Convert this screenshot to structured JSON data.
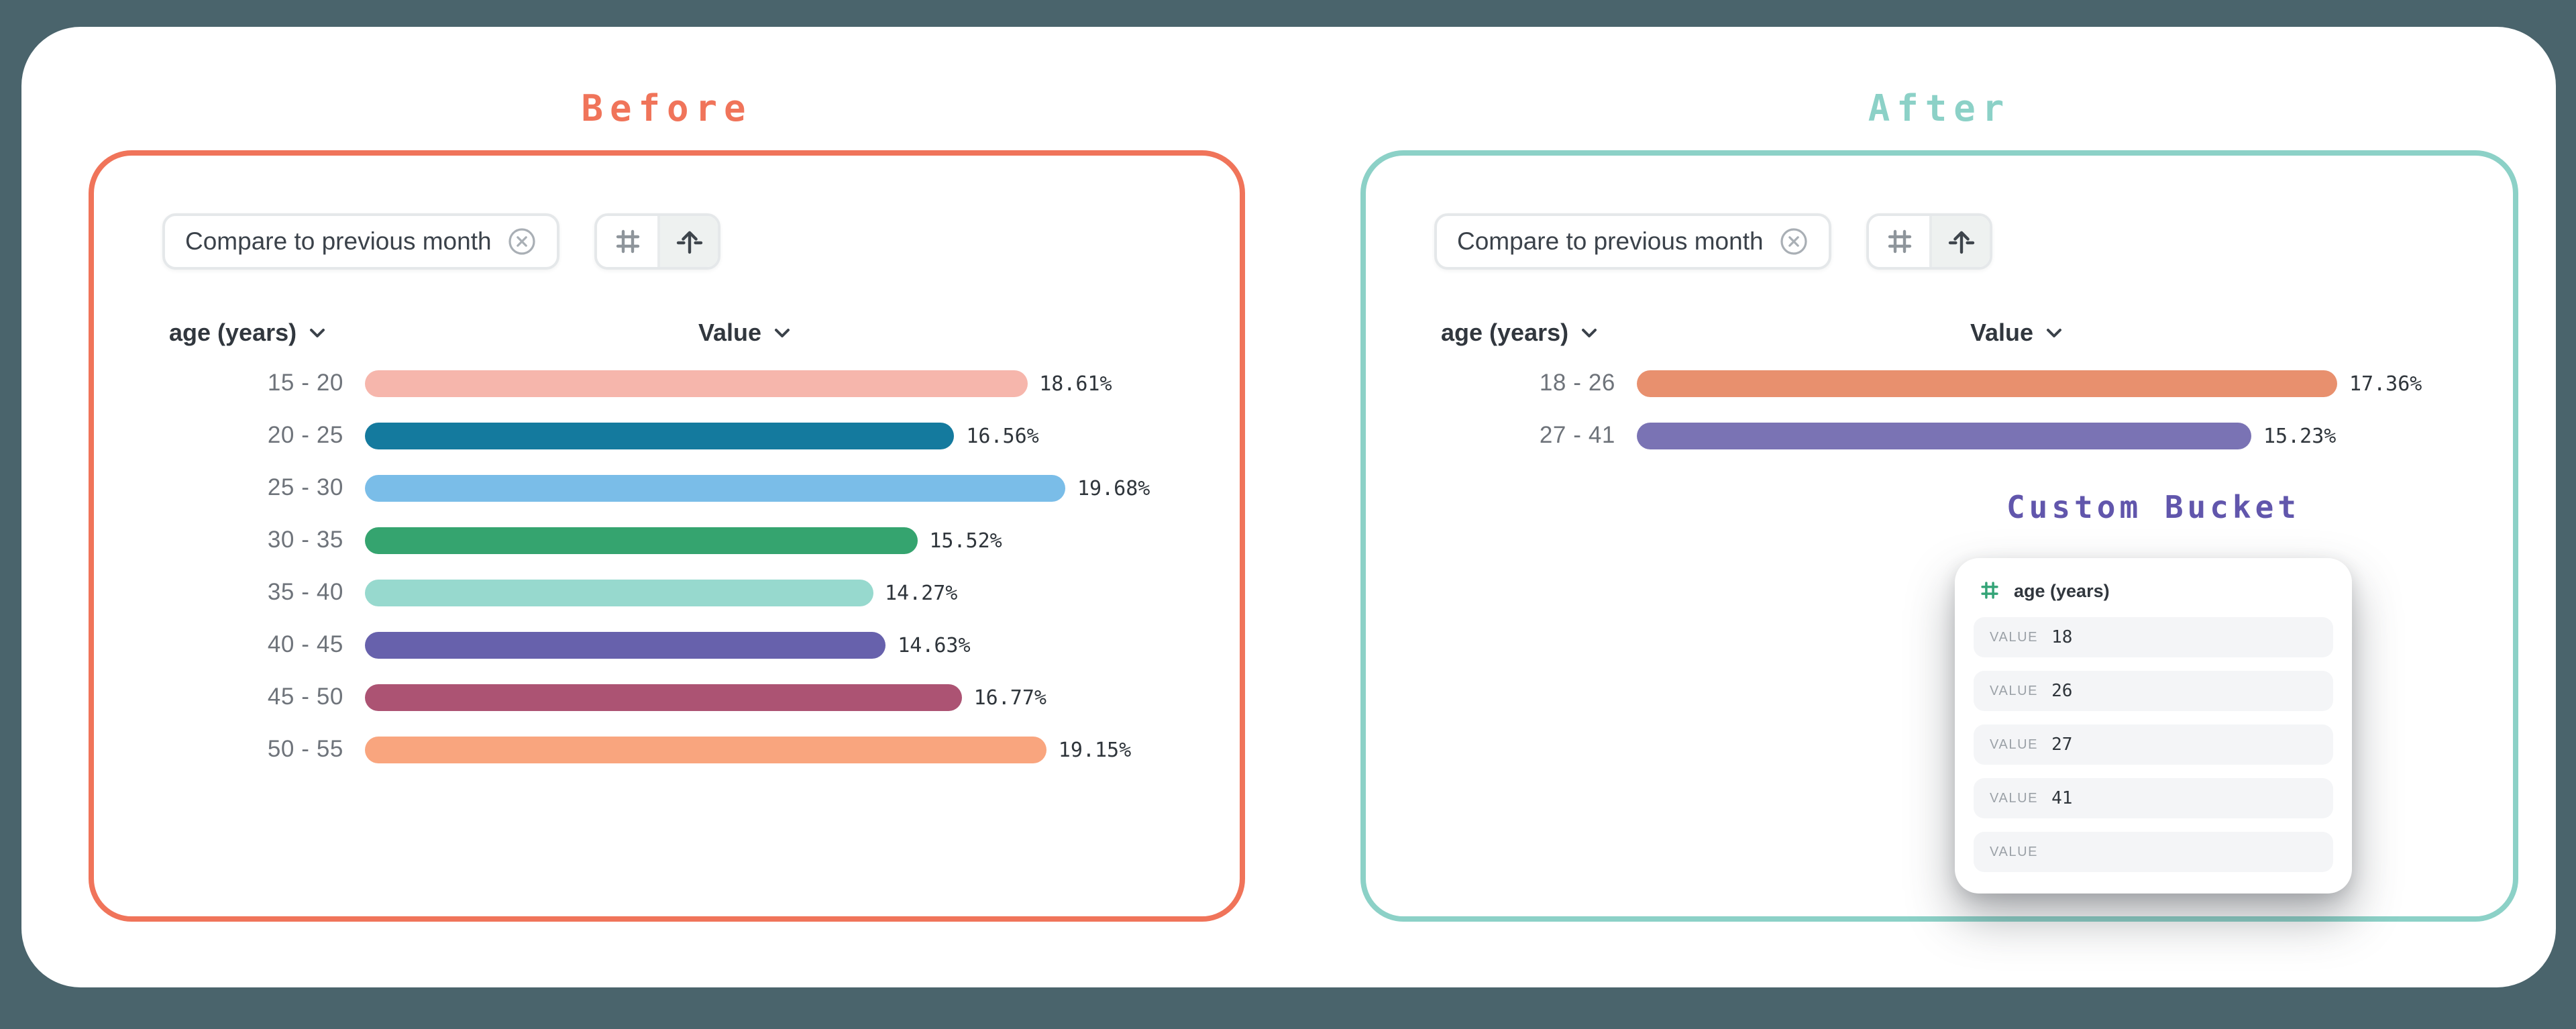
{
  "page": {
    "background": "#4A646C",
    "card_background": "#FFFFFF"
  },
  "before": {
    "title": "Before",
    "accent": "#F0745A",
    "filter_chip": {
      "label": "Compare to previous month",
      "close_icon": "circle-x-icon"
    },
    "view_toggle": {
      "options": [
        {
          "icon": "table-grid-icon",
          "selected": false
        },
        {
          "icon": "bar-chart-axis-icon",
          "selected": true
        }
      ]
    },
    "columns": {
      "dimension": "age (years)",
      "metric": "Value"
    },
    "chart": {
      "type": "bar",
      "orientation": "horizontal",
      "categories": [
        "15 - 20",
        "20 - 25",
        "25 - 30",
        "30 - 35",
        "35 - 40",
        "40 - 45",
        "45 - 50",
        "50 - 55"
      ],
      "values": [
        18.61,
        16.56,
        19.68,
        15.52,
        14.27,
        14.63,
        16.77,
        19.15
      ],
      "value_labels": [
        "18.61%",
        "16.56%",
        "19.68%",
        "15.52%",
        "14.27%",
        "14.63%",
        "16.77%",
        "19.15%"
      ],
      "bar_colors": [
        "#F6B6AC",
        "#147A9E",
        "#7ABDE8",
        "#35A46F",
        "#97D9CE",
        "#6761AC",
        "#AC5373",
        "#F9A57E"
      ],
      "xlim": [
        0,
        19.68
      ]
    }
  },
  "after": {
    "title": "After",
    "accent": "#8CD1C7",
    "filter_chip": {
      "label": "Compare to previous month",
      "close_icon": "circle-x-icon"
    },
    "view_toggle": {
      "options": [
        {
          "icon": "table-grid-icon",
          "selected": false
        },
        {
          "icon": "bar-chart-axis-icon",
          "selected": true
        }
      ]
    },
    "columns": {
      "dimension": "age (years)",
      "metric": "Value"
    },
    "chart": {
      "type": "bar",
      "orientation": "horizontal",
      "categories": [
        "18 - 26",
        "27 - 41"
      ],
      "values": [
        17.36,
        15.23
      ],
      "value_labels": [
        "17.36%",
        "15.23%"
      ],
      "bar_colors": [
        "#E8906E",
        "#7A73B4"
      ],
      "xlim": [
        0,
        17.36
      ]
    },
    "custom_bucket": {
      "title": "Custom Bucket",
      "title_color": "#6156AC",
      "field": {
        "icon": "hash-icon",
        "icon_color": "#34A477",
        "label": "age (years)"
      },
      "rows": [
        {
          "label": "VALUE",
          "value": "18"
        },
        {
          "label": "VALUE",
          "value": "26"
        },
        {
          "label": "VALUE",
          "value": "27"
        },
        {
          "label": "VALUE",
          "value": "41"
        },
        {
          "label": "VALUE",
          "value": ""
        }
      ]
    }
  }
}
